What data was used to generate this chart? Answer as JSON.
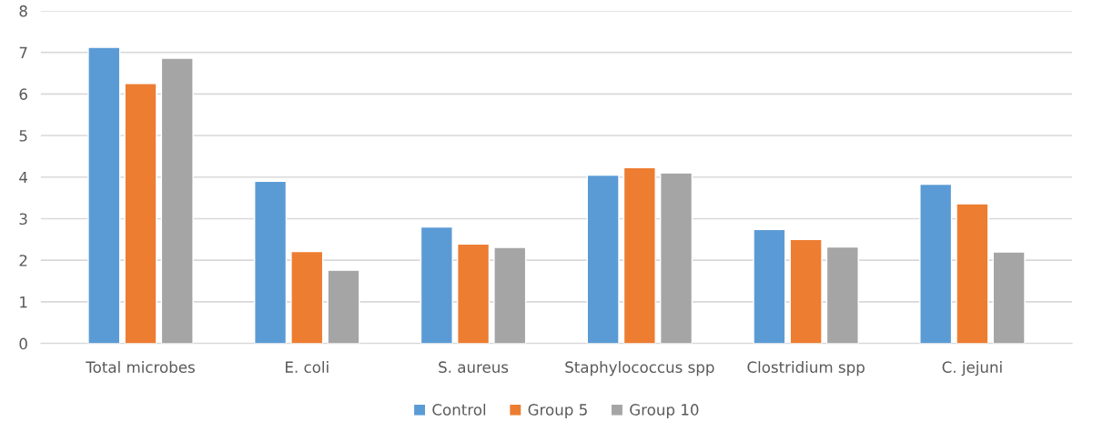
{
  "chart_data": {
    "type": "bar",
    "categories": [
      "Total microbes",
      "E. coli",
      "S. aureus",
      "Staphylococcus spp",
      "Clostridium spp",
      "C. jejuni"
    ],
    "series": [
      {
        "name": "Control",
        "color": "#5b9bd5",
        "values": [
          7.12,
          3.9,
          2.8,
          4.05,
          2.74,
          3.83
        ]
      },
      {
        "name": "Group 5",
        "color": "#ed7d31",
        "values": [
          6.25,
          2.21,
          2.39,
          4.23,
          2.5,
          3.36
        ]
      },
      {
        "name": "Group 10",
        "color": "#a5a5a5",
        "values": [
          6.86,
          1.76,
          2.31,
          4.1,
          2.32,
          2.2
        ]
      }
    ],
    "ylim": [
      0,
      8
    ],
    "yticks": [
      0,
      1,
      2,
      3,
      4,
      5,
      6,
      7,
      8
    ],
    "grid": "y",
    "legend": "bottom"
  }
}
